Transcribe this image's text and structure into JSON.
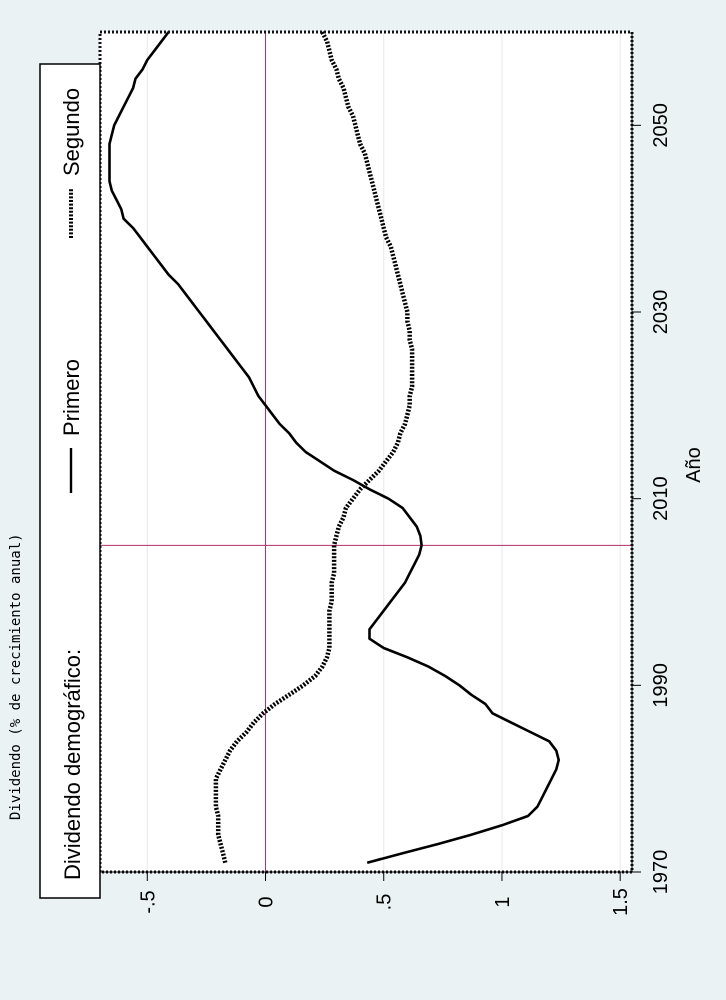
{
  "chart_data": {
    "type": "line",
    "orientation": "rotated-90-ccw",
    "ylabel": "Dividendo (% de crecimiento anual)",
    "xlabel": "Año",
    "legend": {
      "title": "Dividendo demográfico:",
      "placement": "top",
      "entries": [
        "Primero",
        "Segundo"
      ]
    },
    "xlim": [
      1970,
      2060
    ],
    "ylim": [
      -0.7,
      1.55
    ],
    "x_ticks": [
      1970,
      1990,
      2010,
      2030,
      2050
    ],
    "x_tick_labels": [
      "1970",
      "1990",
      "2010",
      "2030",
      "2050"
    ],
    "y_ticks": [
      1.5,
      1,
      0.5,
      0,
      -0.5
    ],
    "y_tick_labels": [
      "1.5",
      "1",
      ".5",
      "0",
      "-.5"
    ],
    "reference_lines": {
      "x": 2005,
      "y": 0,
      "color": "#b0306a"
    },
    "grid": true,
    "series": [
      {
        "name": "Primero",
        "style": "solid",
        "x": [
          1971,
          1972,
          1973,
          1974,
          1975,
          1976,
          1977,
          1978,
          1979,
          1980,
          1981,
          1982,
          1983,
          1984,
          1985,
          1986,
          1987,
          1988,
          1989,
          1990,
          1991,
          1992,
          1993,
          1994,
          1995,
          1996,
          1997,
          1998,
          1999,
          2000,
          2001,
          2002,
          2003,
          2004,
          2005,
          2006,
          2007,
          2008,
          2009,
          2010,
          2011,
          2012,
          2013,
          2014,
          2015,
          2016,
          2017,
          2018,
          2019,
          2020,
          2021,
          2022,
          2023,
          2024,
          2025,
          2026,
          2027,
          2028,
          2029,
          2030,
          2031,
          2032,
          2033,
          2034,
          2035,
          2036,
          2037,
          2038,
          2039,
          2040,
          2041,
          2042,
          2043,
          2044,
          2045,
          2046,
          2047,
          2048,
          2049,
          2050,
          2051,
          2052,
          2053,
          2054,
          2055,
          2056,
          2057,
          2058,
          2059,
          2060
        ],
        "y": [
          0.43,
          0.58,
          0.73,
          0.87,
          1.0,
          1.11,
          1.15,
          1.17,
          1.19,
          1.21,
          1.23,
          1.24,
          1.23,
          1.2,
          1.12,
          1.04,
          0.96,
          0.93,
          0.87,
          0.82,
          0.76,
          0.69,
          0.6,
          0.5,
          0.44,
          0.44,
          0.47,
          0.5,
          0.53,
          0.56,
          0.59,
          0.61,
          0.63,
          0.65,
          0.66,
          0.655,
          0.64,
          0.61,
          0.58,
          0.52,
          0.44,
          0.37,
          0.29,
          0.23,
          0.17,
          0.13,
          0.1,
          0.06,
          0.03,
          0.0,
          -0.03,
          -0.05,
          -0.07,
          -0.1,
          -0.13,
          -0.16,
          -0.19,
          -0.22,
          -0.25,
          -0.28,
          -0.31,
          -0.34,
          -0.37,
          -0.41,
          -0.44,
          -0.47,
          -0.5,
          -0.53,
          -0.56,
          -0.6,
          -0.61,
          -0.63,
          -0.65,
          -0.66,
          -0.66,
          -0.66,
          -0.66,
          -0.66,
          -0.65,
          -0.64,
          -0.62,
          -0.6,
          -0.58,
          -0.56,
          -0.55,
          -0.52,
          -0.5,
          -0.47,
          -0.44,
          -0.41
        ]
      },
      {
        "name": "Segundo",
        "style": "dotted",
        "x": [
          1971,
          1972,
          1973,
          1974,
          1975,
          1976,
          1977,
          1978,
          1979,
          1980,
          1981,
          1982,
          1983,
          1984,
          1985,
          1986,
          1987,
          1988,
          1989,
          1990,
          1991,
          1992,
          1993,
          1994,
          1995,
          1996,
          1997,
          1998,
          1999,
          2000,
          2001,
          2002,
          2003,
          2004,
          2005,
          2006,
          2007,
          2008,
          2009,
          2010,
          2011,
          2012,
          2013,
          2014,
          2015,
          2016,
          2017,
          2018,
          2019,
          2020,
          2021,
          2022,
          2023,
          2024,
          2025,
          2026,
          2027,
          2028,
          2029,
          2030,
          2031,
          2032,
          2033,
          2034,
          2035,
          2036,
          2037,
          2038,
          2039,
          2040,
          2041,
          2042,
          2043,
          2044,
          2045,
          2046,
          2047,
          2048,
          2049,
          2050,
          2051,
          2052,
          2053,
          2054,
          2055,
          2056,
          2057,
          2058,
          2059,
          2060
        ],
        "y": [
          -0.17,
          -0.18,
          -0.19,
          -0.2,
          -0.2,
          -0.2,
          -0.21,
          -0.21,
          -0.21,
          -0.21,
          -0.19,
          -0.17,
          -0.15,
          -0.12,
          -0.08,
          -0.05,
          -0.01,
          0.04,
          0.1,
          0.16,
          0.21,
          0.24,
          0.26,
          0.27,
          0.27,
          0.27,
          0.27,
          0.27,
          0.28,
          0.28,
          0.28,
          0.29,
          0.29,
          0.29,
          0.29,
          0.3,
          0.31,
          0.33,
          0.34,
          0.37,
          0.4,
          0.44,
          0.48,
          0.51,
          0.54,
          0.56,
          0.57,
          0.59,
          0.6,
          0.61,
          0.61,
          0.62,
          0.62,
          0.62,
          0.62,
          0.62,
          0.61,
          0.61,
          0.6,
          0.6,
          0.59,
          0.58,
          0.57,
          0.56,
          0.55,
          0.54,
          0.53,
          0.51,
          0.5,
          0.49,
          0.48,
          0.47,
          0.46,
          0.45,
          0.44,
          0.43,
          0.42,
          0.4,
          0.39,
          0.38,
          0.37,
          0.35,
          0.34,
          0.33,
          0.31,
          0.3,
          0.28,
          0.27,
          0.26,
          0.24
        ]
      }
    ]
  }
}
